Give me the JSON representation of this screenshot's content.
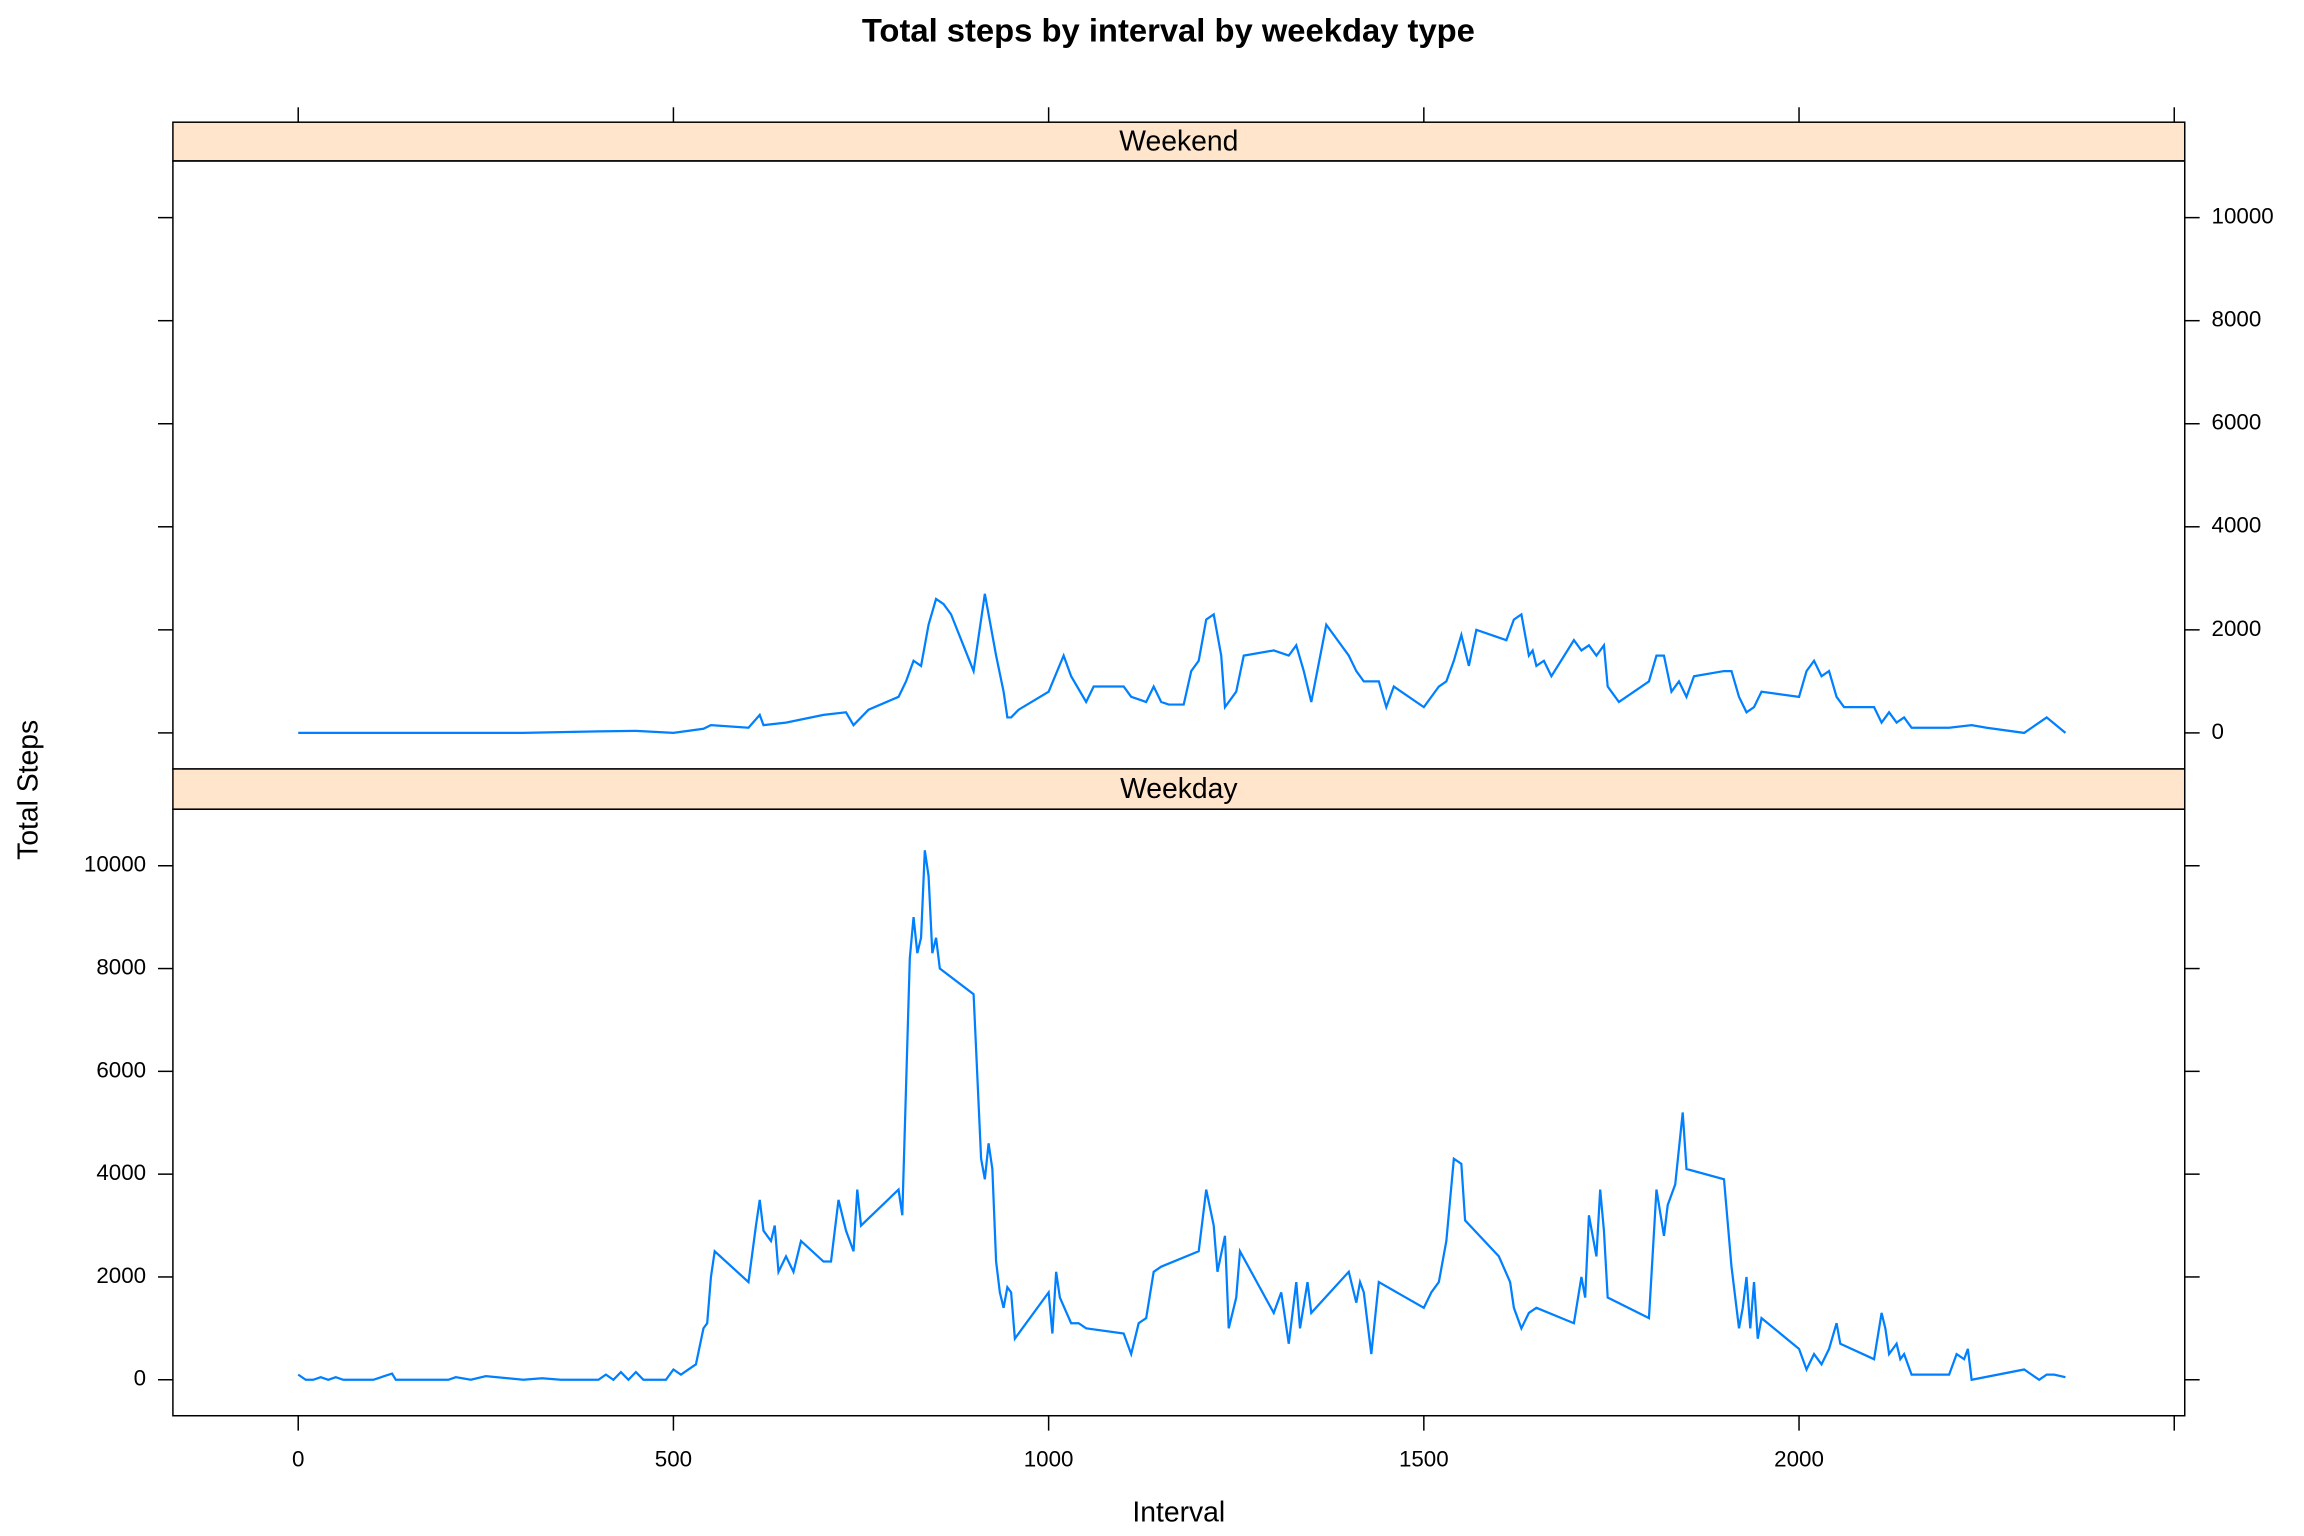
{
  "chart_data": {
    "type": "line",
    "title": "Total steps by interval by weekday type",
    "xlabel": "Interval",
    "ylabel": "Total Steps",
    "color": "#0080ff",
    "xlim": [
      -167,
      2514
    ],
    "xticks": [
      0,
      500,
      1000,
      1500,
      2000,
      {
        "value": 2500,
        "label": null
      }
    ],
    "ylim": [
      -700,
      11100
    ],
    "yticks": [
      0,
      2000,
      4000,
      6000,
      8000,
      10000
    ],
    "series": [
      {
        "name": "Weekend",
        "color": "#0080ff",
        "x": [
          0,
          100,
          200,
          300,
          400,
          450,
          500,
          540,
          550,
          600,
          615,
          620,
          650,
          700,
          730,
          740,
          760,
          800,
          810,
          820,
          830,
          840,
          850,
          860,
          870,
          900,
          915,
          930,
          940,
          945,
          950,
          960,
          1000,
          1020,
          1030,
          1050,
          1060,
          1100,
          1110,
          1130,
          1140,
          1150,
          1160,
          1180,
          1190,
          1200,
          1210,
          1220,
          1230,
          1235,
          1250,
          1260,
          1300,
          1320,
          1330,
          1340,
          1350,
          1370,
          1400,
          1410,
          1420,
          1440,
          1450,
          1460,
          1500,
          1520,
          1530,
          1540,
          1550,
          1560,
          1570,
          1610,
          1620,
          1630,
          1640,
          1645,
          1650,
          1660,
          1670,
          1700,
          1710,
          1720,
          1730,
          1740,
          1745,
          1750,
          1760,
          1800,
          1810,
          1820,
          1830,
          1840,
          1850,
          1860,
          1900,
          1910,
          1920,
          1930,
          1940,
          1950,
          2000,
          2010,
          2020,
          2030,
          2040,
          2050,
          2060,
          2100,
          2110,
          2120,
          2130,
          2140,
          2150,
          2200,
          2230,
          2250,
          2300,
          2330,
          2355
        ],
        "values": [
          0,
          0,
          0,
          0,
          30,
          40,
          0,
          80,
          150,
          100,
          350,
          150,
          200,
          350,
          400,
          150,
          450,
          700,
          1000,
          1400,
          1300,
          2100,
          2600,
          2500,
          2300,
          1200,
          2700,
          1500,
          800,
          300,
          300,
          450,
          800,
          1500,
          1100,
          600,
          900,
          900,
          700,
          600,
          900,
          600,
          550,
          550,
          1200,
          1400,
          2200,
          2300,
          1500,
          500,
          800,
          1500,
          1600,
          1500,
          1700,
          1200,
          600,
          2100,
          1500,
          1200,
          1000,
          1000,
          500,
          900,
          500,
          900,
          1000,
          1400,
          1900,
          1300,
          2000,
          1800,
          2200,
          2300,
          1500,
          1600,
          1300,
          1400,
          1100,
          1800,
          1600,
          1700,
          1500,
          1700,
          900,
          800,
          600,
          1000,
          1500,
          1500,
          800,
          1000,
          700,
          1100,
          1200,
          1200,
          700,
          400,
          500,
          800,
          700,
          1200,
          1400,
          1100,
          1200,
          700,
          500,
          500,
          200,
          400,
          200,
          300,
          100,
          100,
          150,
          100,
          0,
          300,
          0
        ]
      },
      {
        "name": "Weekday",
        "color": "#0080ff",
        "x": [
          0,
          10,
          20,
          30,
          40,
          50,
          60,
          100,
          125,
          130,
          200,
          210,
          230,
          250,
          300,
          325,
          350,
          400,
          410,
          420,
          430,
          440,
          450,
          460,
          490,
          500,
          510,
          520,
          530,
          540,
          545,
          550,
          555,
          600,
          610,
          615,
          620,
          630,
          635,
          640,
          650,
          660,
          670,
          700,
          710,
          720,
          730,
          740,
          745,
          750,
          800,
          805,
          815,
          820,
          825,
          830,
          835,
          840,
          845,
          850,
          855,
          900,
          910,
          915,
          920,
          925,
          930,
          935,
          940,
          945,
          950,
          955,
          1000,
          1005,
          1010,
          1015,
          1030,
          1040,
          1050,
          1100,
          1110,
          1120,
          1130,
          1140,
          1150,
          1200,
          1210,
          1220,
          1225,
          1235,
          1240,
          1250,
          1255,
          1300,
          1310,
          1320,
          1330,
          1335,
          1345,
          1350,
          1400,
          1410,
          1415,
          1420,
          1430,
          1440,
          1500,
          1510,
          1520,
          1530,
          1540,
          1550,
          1555,
          1600,
          1615,
          1620,
          1630,
          1640,
          1650,
          1700,
          1710,
          1715,
          1720,
          1730,
          1735,
          1740,
          1745,
          1800,
          1810,
          1820,
          1825,
          1835,
          1845,
          1850,
          1900,
          1910,
          1920,
          1925,
          1930,
          1935,
          1940,
          1945,
          1950,
          2000,
          2010,
          2020,
          2030,
          2040,
          2050,
          2055,
          2100,
          2110,
          2115,
          2120,
          2130,
          2135,
          2140,
          2150,
          2200,
          2210,
          2220,
          2225,
          2230,
          2300,
          2310,
          2320,
          2330,
          2340,
          2355
        ],
        "values": [
          100,
          0,
          0,
          50,
          0,
          50,
          0,
          0,
          120,
          0,
          0,
          50,
          0,
          70,
          0,
          30,
          0,
          0,
          100,
          0,
          150,
          0,
          150,
          0,
          0,
          200,
          100,
          200,
          300,
          1000,
          1100,
          2000,
          2500,
          1900,
          3000,
          3500,
          2900,
          2700,
          3000,
          2100,
          2400,
          2100,
          2700,
          2300,
          2300,
          3500,
          2900,
          2500,
          3700,
          3000,
          3700,
          3200,
          8200,
          9000,
          8300,
          8600,
          10300,
          9800,
          8300,
          8600,
          8000,
          7500,
          4300,
          3900,
          4600,
          4100,
          2300,
          1700,
          1400,
          1800,
          1700,
          800,
          1700,
          900,
          2100,
          1600,
          1100,
          1100,
          1000,
          900,
          500,
          1100,
          1200,
          2100,
          2200,
          2500,
          3700,
          3000,
          2100,
          2800,
          1000,
          1600,
          2500,
          1300,
          1700,
          700,
          1900,
          1000,
          1900,
          1300,
          2100,
          1500,
          1900,
          1700,
          500,
          1900,
          1400,
          1700,
          1900,
          2700,
          4300,
          4200,
          3100,
          2400,
          1900,
          1400,
          1000,
          1300,
          1400,
          1100,
          2000,
          1600,
          3200,
          2400,
          3700,
          2900,
          1600,
          1200,
          3700,
          2800,
          3400,
          3800,
          5200,
          4100,
          3900,
          2200,
          1000,
          1400,
          2000,
          1000,
          1900,
          800,
          1200,
          600,
          200,
          500,
          300,
          600,
          1100,
          700,
          400,
          1300,
          1000,
          500,
          700,
          400,
          500,
          100,
          100,
          500,
          400,
          600,
          0,
          200,
          100,
          0,
          100,
          100,
          50
        ]
      }
    ]
  }
}
